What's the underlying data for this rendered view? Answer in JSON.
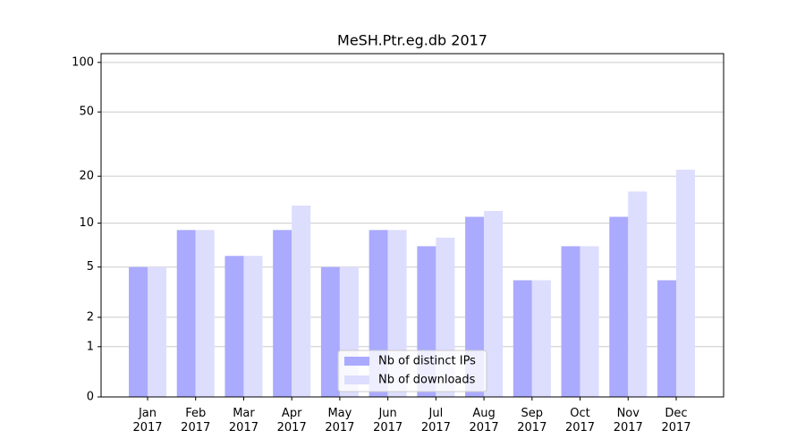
{
  "chart_data": {
    "type": "bar",
    "title": "MeSH.Ptr.eg.db 2017",
    "categories": [
      "Jan 2017",
      "Feb 2017",
      "Mar 2017",
      "Apr 2017",
      "May 2017",
      "Jun 2017",
      "Jul 2017",
      "Aug 2017",
      "Sep 2017",
      "Oct 2017",
      "Nov 2017",
      "Dec 2017"
    ],
    "series": [
      {
        "name": "Nb of distinct IPs",
        "color": "#aaaaff",
        "values": [
          5,
          9,
          6,
          9,
          5,
          9,
          7,
          11,
          4,
          7,
          11,
          4
        ]
      },
      {
        "name": "Nb of downloads",
        "color": "#ddddfe",
        "values": [
          5,
          9,
          6,
          13,
          5,
          9,
          8,
          12,
          4,
          7,
          16,
          22
        ]
      }
    ],
    "yscale": "log1p",
    "ylim": [
      0,
      113
    ],
    "yticks": [
      0,
      1,
      2,
      5,
      10,
      20,
      50,
      100
    ],
    "grid": true,
    "legend": "lower center"
  }
}
